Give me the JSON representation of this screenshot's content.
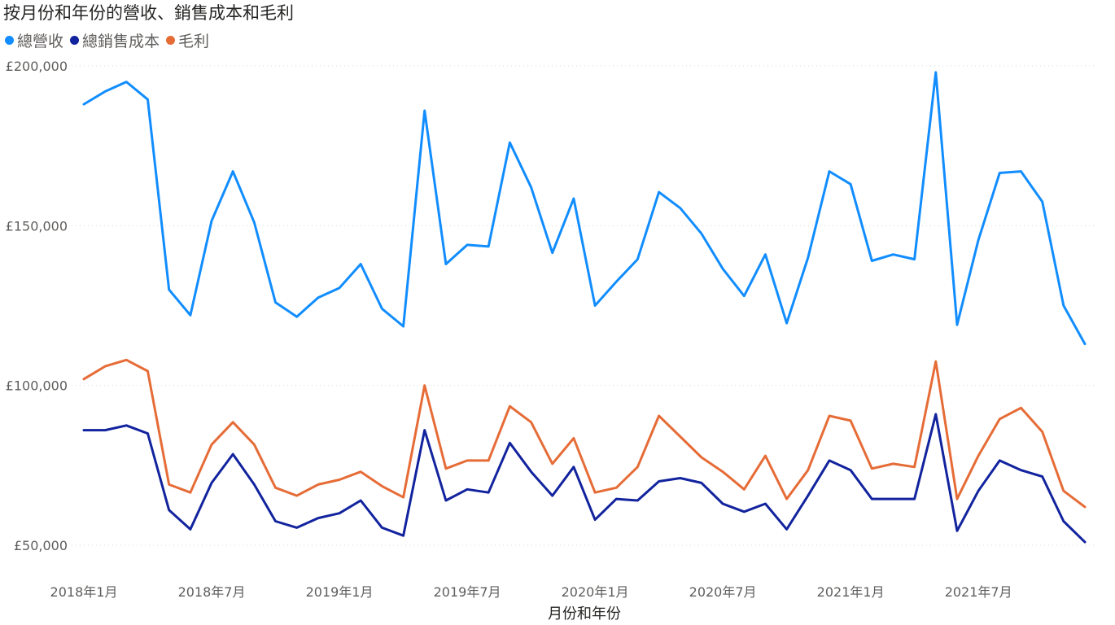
{
  "chart_data": {
    "type": "line",
    "title": "按月份和年份的營收、銷售成本和毛利",
    "xlabel": "月份和年份",
    "ylabel": "",
    "x": [
      "2018-01",
      "2018-02",
      "2018-03",
      "2018-04",
      "2018-05",
      "2018-06",
      "2018-07",
      "2018-08",
      "2018-09",
      "2018-10",
      "2018-11",
      "2018-12",
      "2019-01",
      "2019-02",
      "2019-03",
      "2019-04",
      "2019-05",
      "2019-06",
      "2019-07",
      "2019-08",
      "2019-09",
      "2019-10",
      "2019-11",
      "2019-12",
      "2020-01",
      "2020-02",
      "2020-03",
      "2020-04",
      "2020-05",
      "2020-06",
      "2020-07",
      "2020-08",
      "2020-09",
      "2020-10",
      "2020-11",
      "2020-12",
      "2021-01",
      "2021-02",
      "2021-03",
      "2021-04",
      "2021-05",
      "2021-06",
      "2021-07",
      "2021-08",
      "2021-09",
      "2021-10",
      "2021-11",
      "2021-12"
    ],
    "x_tick_labels": [
      "2018年1月",
      "2018年7月",
      "2019年1月",
      "2019年7月",
      "2020年1月",
      "2020年7月",
      "2021年1月",
      "2021年7月"
    ],
    "x_tick_index": [
      0,
      6,
      12,
      18,
      24,
      30,
      36,
      42
    ],
    "y_ticks": [
      50000,
      100000,
      150000,
      200000
    ],
    "y_tick_labels": [
      "£50,000",
      "£100,000",
      "£150,000",
      "£200,000"
    ],
    "ylim": [
      40000,
      203000
    ],
    "grid": true,
    "legend_position": "top-left",
    "series": [
      {
        "name": "總營收",
        "color": "#118DFF",
        "values": [
          188000,
          192000,
          195000,
          189500,
          130000,
          122000,
          151500,
          167000,
          151000,
          126000,
          121500,
          127500,
          130500,
          138000,
          124000,
          118500,
          186000,
          138000,
          144000,
          143500,
          176000,
          162000,
          141500,
          158500,
          125000,
          132500,
          139500,
          160500,
          155500,
          147500,
          136500,
          128000,
          141000,
          119500,
          140000,
          167000,
          163000,
          139000,
          141000,
          139500,
          198000,
          119000,
          145500,
          166500,
          167000,
          157500,
          125000,
          113000
        ]
      },
      {
        "name": "總銷售成本",
        "color": "#12239E",
        "values": [
          86000,
          86000,
          87500,
          85000,
          61000,
          55000,
          69500,
          78500,
          69000,
          57500,
          55500,
          58500,
          60000,
          64000,
          55500,
          53000,
          86000,
          64000,
          67500,
          66500,
          82000,
          73000,
          65500,
          74500,
          58000,
          64500,
          64000,
          70000,
          71000,
          69500,
          63000,
          60500,
          63000,
          55000,
          65500,
          76500,
          73500,
          64500,
          64500,
          64500,
          91000,
          54500,
          67000,
          76500,
          73500,
          71500,
          57500,
          51000
        ]
      },
      {
        "name": "毛利",
        "color": "#E66C37",
        "values": [
          102000,
          106000,
          108000,
          104500,
          69000,
          66500,
          81500,
          88500,
          81500,
          68000,
          65500,
          69000,
          70500,
          73000,
          68500,
          65000,
          100000,
          74000,
          76500,
          76500,
          93500,
          88500,
          75500,
          83500,
          66500,
          68000,
          74500,
          90500,
          84000,
          77500,
          73000,
          67500,
          78000,
          64500,
          73500,
          90500,
          89000,
          74000,
          75500,
          74500,
          107500,
          64500,
          78000,
          89500,
          93000,
          85500,
          67000,
          62000
        ]
      }
    ]
  }
}
